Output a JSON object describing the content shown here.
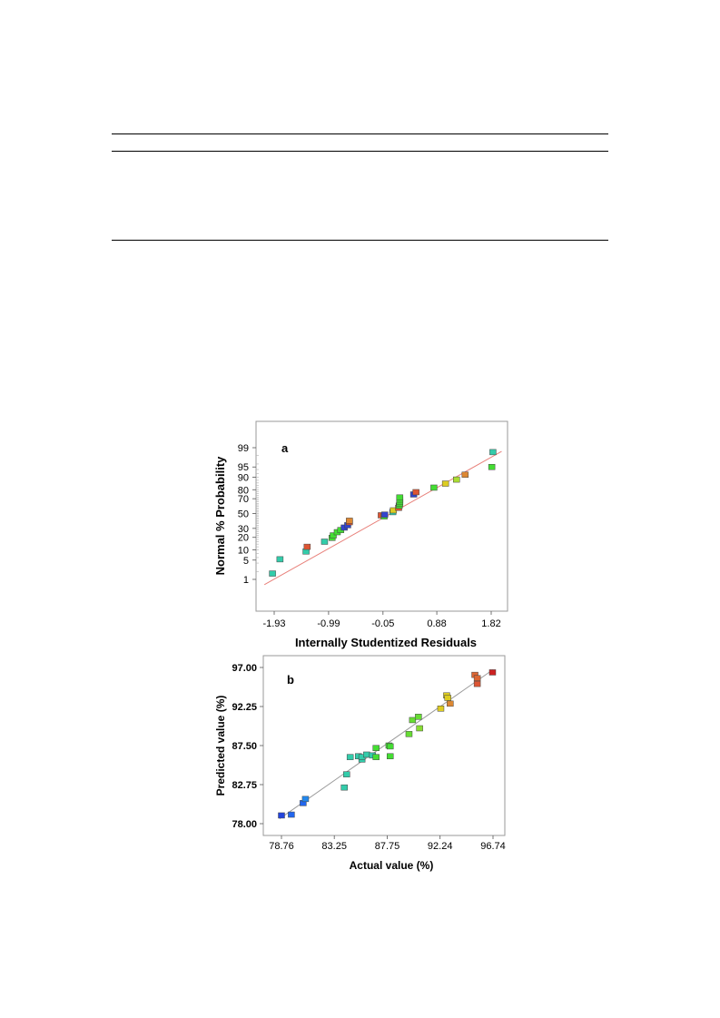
{
  "chart_data": [
    {
      "type": "scatter",
      "panel_label": "a",
      "xlabel": "Internally Studentized Residuals",
      "ylabel": "Normal % Probability",
      "x_ticks": [
        -1.93,
        -0.99,
        -0.05,
        0.88,
        1.82
      ],
      "x_tick_labels": [
        "-1.93",
        "-0.99",
        "-0.05",
        "0.88",
        "1.82"
      ],
      "y_scale": "normal-probability",
      "y_ticks": [
        1,
        5,
        10,
        20,
        30,
        50,
        70,
        80,
        90,
        95,
        99
      ],
      "y_tick_labels": [
        "1",
        "5",
        "10",
        "20",
        "30",
        "50",
        "70",
        "80",
        "90",
        "95",
        "99"
      ],
      "xlim": [
        -2.1,
        2.0
      ],
      "reference_line": {
        "from": [
          -2.1,
          0.6
        ],
        "to": [
          2.0,
          98.6
        ],
        "color": "#e8807a"
      },
      "points": [
        {
          "x": -1.96,
          "y": 1.7,
          "color": "#33ccaa"
        },
        {
          "x": -1.83,
          "y": 5.3,
          "color": "#33ccaa"
        },
        {
          "x": -1.38,
          "y": 9.0,
          "color": "#33ccaa"
        },
        {
          "x": -1.36,
          "y": 12.0,
          "color": "#dd5533"
        },
        {
          "x": -1.06,
          "y": 16.0,
          "color": "#33ccaa"
        },
        {
          "x": -0.93,
          "y": 19.5,
          "color": "#44dd33"
        },
        {
          "x": -0.91,
          "y": 22.0,
          "color": "#44dd33"
        },
        {
          "x": -0.84,
          "y": 25.5,
          "color": "#44dd33"
        },
        {
          "x": -0.78,
          "y": 28.0,
          "color": "#44dd33"
        },
        {
          "x": -0.72,
          "y": 31.0,
          "color": "#3344cc"
        },
        {
          "x": -0.66,
          "y": 34.0,
          "color": "#3344cc"
        },
        {
          "x": -0.63,
          "y": 38.0,
          "color": "#dd5533"
        },
        {
          "x": -0.63,
          "y": 40.0,
          "color": "#dd8833"
        },
        {
          "x": -0.08,
          "y": 47.5,
          "color": "#dd5533"
        },
        {
          "x": -0.03,
          "y": 46.0,
          "color": "#44dd33"
        },
        {
          "x": -0.02,
          "y": 48.5,
          "color": "#3344cc"
        },
        {
          "x": 0.12,
          "y": 52.0,
          "color": "#33ccaa"
        },
        {
          "x": 0.13,
          "y": 54.5,
          "color": "#ddcc22"
        },
        {
          "x": 0.22,
          "y": 58.0,
          "color": "#dd5533"
        },
        {
          "x": 0.23,
          "y": 61.0,
          "color": "#44dd33"
        },
        {
          "x": 0.24,
          "y": 64.0,
          "color": "#44dd33"
        },
        {
          "x": 0.24,
          "y": 66.5,
          "color": "#44dd33"
        },
        {
          "x": 0.24,
          "y": 69.0,
          "color": "#44dd33"
        },
        {
          "x": 0.24,
          "y": 71.5,
          "color": "#44dd33"
        },
        {
          "x": 0.48,
          "y": 75.0,
          "color": "#3344cc"
        },
        {
          "x": 0.52,
          "y": 77.5,
          "color": "#dd5533"
        },
        {
          "x": 0.83,
          "y": 82.0,
          "color": "#44dd33"
        },
        {
          "x": 1.03,
          "y": 85.5,
          "color": "#ddcc22"
        },
        {
          "x": 1.22,
          "y": 88.5,
          "color": "#aadd33"
        },
        {
          "x": 1.37,
          "y": 91.5,
          "color": "#dd8833"
        },
        {
          "x": 1.83,
          "y": 95.0,
          "color": "#44dd33"
        },
        {
          "x": 1.85,
          "y": 98.5,
          "color": "#33ccaa"
        }
      ]
    },
    {
      "type": "scatter",
      "panel_label": "b",
      "xlabel": "Actual value (%)",
      "ylabel": "Predicted value (%)",
      "x_ticks": [
        78.76,
        83.25,
        87.75,
        92.24,
        96.74
      ],
      "x_tick_labels": [
        "78.76",
        "83.25",
        "87.75",
        "92.24",
        "96.74"
      ],
      "y_ticks": [
        78.0,
        82.75,
        87.5,
        92.25,
        97.0
      ],
      "y_tick_labels": [
        "78.00",
        "82.75",
        "87.50",
        "92.25",
        "97.00"
      ],
      "xlim": [
        77.3,
        97.1
      ],
      "ylim": [
        77.4,
        97.6
      ],
      "reference_line": {
        "from": [
          78.6,
          78.6
        ],
        "to": [
          96.74,
          96.74
        ],
        "color": "#999999"
      },
      "points": [
        {
          "x": 78.76,
          "y": 79.0,
          "color": "#2244dd"
        },
        {
          "x": 79.6,
          "y": 79.1,
          "color": "#2266ee"
        },
        {
          "x": 80.6,
          "y": 80.5,
          "color": "#2266ee"
        },
        {
          "x": 80.8,
          "y": 81.0,
          "color": "#2288ee"
        },
        {
          "x": 84.1,
          "y": 82.4,
          "color": "#33ccaa"
        },
        {
          "x": 84.3,
          "y": 84.0,
          "color": "#33ccaa"
        },
        {
          "x": 84.6,
          "y": 86.1,
          "color": "#33ccaa"
        },
        {
          "x": 85.3,
          "y": 86.2,
          "color": "#33ccaa"
        },
        {
          "x": 85.6,
          "y": 85.8,
          "color": "#33ccaa"
        },
        {
          "x": 85.6,
          "y": 86.1,
          "color": "#33ccaa"
        },
        {
          "x": 86.0,
          "y": 86.4,
          "color": "#33ccaa"
        },
        {
          "x": 86.5,
          "y": 86.3,
          "color": "#33ccaa"
        },
        {
          "x": 86.8,
          "y": 86.1,
          "color": "#44dd33"
        },
        {
          "x": 86.8,
          "y": 87.2,
          "color": "#44dd33"
        },
        {
          "x": 87.9,
          "y": 87.5,
          "color": "#44dd33"
        },
        {
          "x": 88.0,
          "y": 87.4,
          "color": "#44dd33"
        },
        {
          "x": 88.0,
          "y": 86.2,
          "color": "#44dd33"
        },
        {
          "x": 89.6,
          "y": 88.9,
          "color": "#66dd33"
        },
        {
          "x": 89.9,
          "y": 90.6,
          "color": "#66dd33"
        },
        {
          "x": 90.4,
          "y": 91.0,
          "color": "#66dd33"
        },
        {
          "x": 90.5,
          "y": 89.6,
          "color": "#88dd33"
        },
        {
          "x": 92.3,
          "y": 92.0,
          "color": "#ddcc22"
        },
        {
          "x": 92.8,
          "y": 93.6,
          "color": "#ddcc22"
        },
        {
          "x": 92.9,
          "y": 93.3,
          "color": "#ddcc22"
        },
        {
          "x": 93.1,
          "y": 92.6,
          "color": "#dd8833"
        },
        {
          "x": 95.2,
          "y": 96.1,
          "color": "#dd6633"
        },
        {
          "x": 95.4,
          "y": 95.7,
          "color": "#dd6633"
        },
        {
          "x": 95.4,
          "y": 95.0,
          "color": "#dd5533"
        },
        {
          "x": 96.7,
          "y": 96.4,
          "color": "#cc2222"
        }
      ]
    }
  ]
}
